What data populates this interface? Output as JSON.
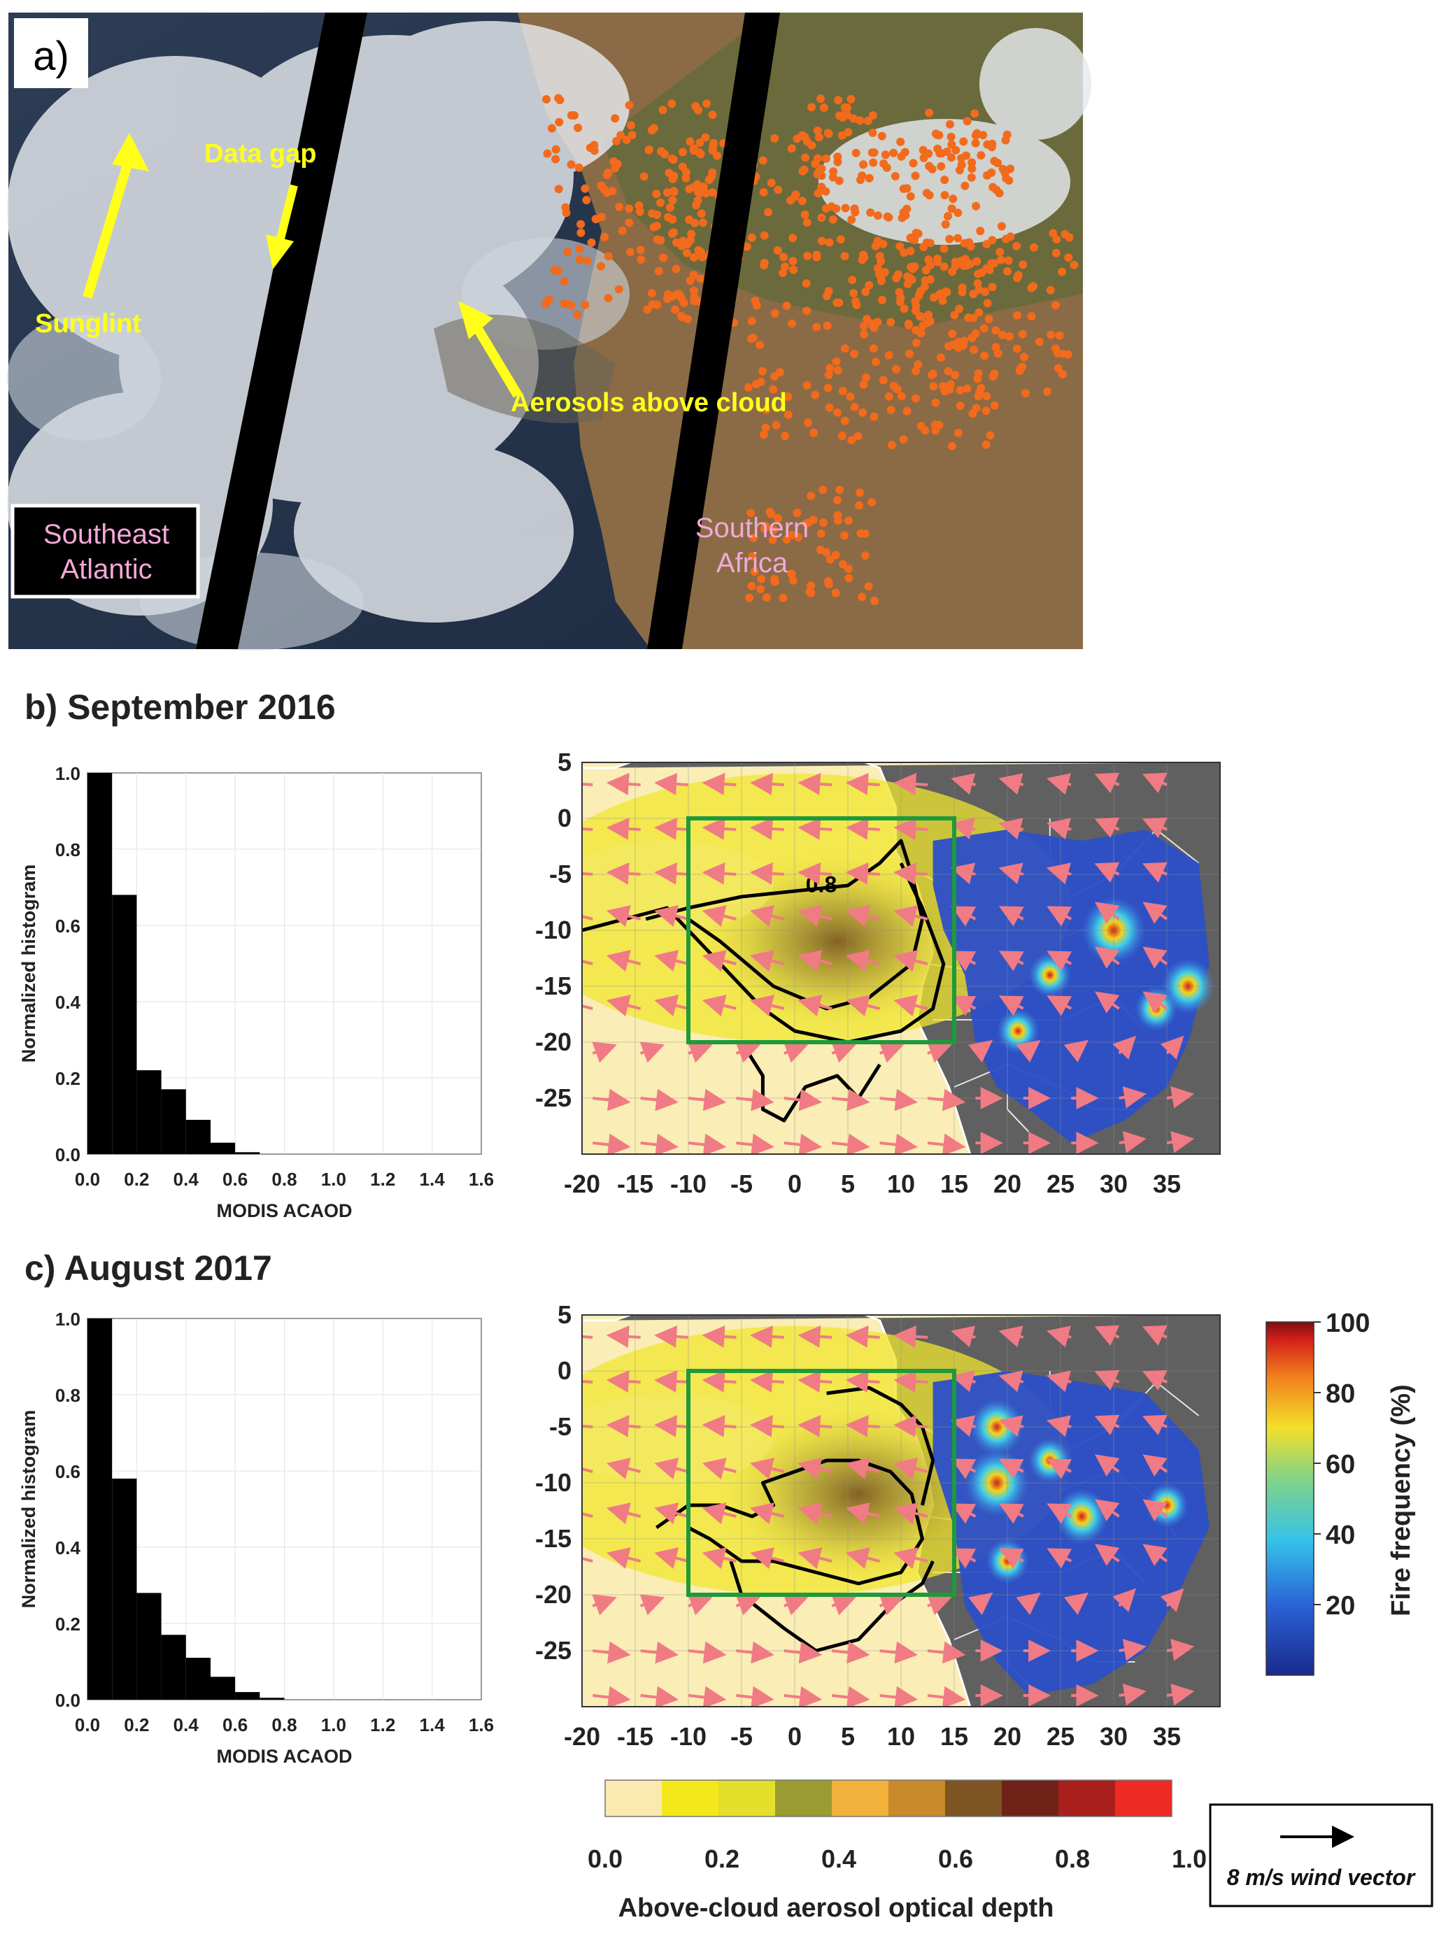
{
  "panel_a": {
    "label": "a)",
    "annotations": {
      "sunglint": "Sunglint",
      "data_gap": "Data gap",
      "aerosols": "Aerosols above cloud",
      "region_ocean": [
        "Southeast",
        "Atlantic"
      ],
      "region_land": [
        "Southern",
        "Africa"
      ]
    }
  },
  "panel_b": {
    "title": "b) September 2016"
  },
  "panel_c": {
    "title": "c) August 2017"
  },
  "colors": {
    "histogram": "#000000",
    "box": "#1e9a3c",
    "wind": "#f07b84",
    "land": "#606060",
    "fire_points": "#f26a1b",
    "annotation_yellow": "#ffff1a",
    "region_pink": "#f2a8d8"
  },
  "chart_data": [
    {
      "id": "hist-sep-2016",
      "type": "bar",
      "xlabel": "MODIS ACAOD",
      "ylabel": "Normalized histogram",
      "xlim": [
        0.0,
        1.6
      ],
      "ylim": [
        0.0,
        1.0
      ],
      "xticks": [
        "0.0",
        "0.2",
        "0.4",
        "0.6",
        "0.8",
        "1.0",
        "1.2",
        "1.4",
        "1.6"
      ],
      "yticks": [
        "0.0",
        "0.2",
        "0.4",
        "0.6",
        "0.8",
        "1.0"
      ],
      "bin_width": 0.1,
      "bins": [
        0.0,
        0.1,
        0.2,
        0.3,
        0.4,
        0.5,
        0.6
      ],
      "values": [
        1.0,
        0.68,
        0.22,
        0.17,
        0.09,
        0.03,
        0.005
      ]
    },
    {
      "id": "map-sep-2016",
      "type": "heatmap",
      "xlim": [
        -20,
        40
      ],
      "ylim": [
        -30,
        5
      ],
      "xticks": [
        "-20",
        "-15",
        "-10",
        "-5",
        "0",
        "5",
        "10",
        "15",
        "20",
        "25",
        "30",
        "35"
      ],
      "yticks": [
        "5",
        "0",
        "-5",
        "-10",
        "-15",
        "-20",
        "-25"
      ],
      "contour_label": "0.8",
      "study_box": {
        "lon": [
          -10,
          15
        ],
        "lat": [
          -20,
          0
        ]
      }
    },
    {
      "id": "hist-aug-2017",
      "type": "bar",
      "xlabel": "MODIS ACAOD",
      "ylabel": "Normalized histogram",
      "xlim": [
        0.0,
        1.6
      ],
      "ylim": [
        0.0,
        1.0
      ],
      "xticks": [
        "0.0",
        "0.2",
        "0.4",
        "0.6",
        "0.8",
        "1.0",
        "1.2",
        "1.4",
        "1.6"
      ],
      "yticks": [
        "0.0",
        "0.2",
        "0.4",
        "0.6",
        "0.8",
        "1.0"
      ],
      "bin_width": 0.1,
      "bins": [
        0.0,
        0.1,
        0.2,
        0.3,
        0.4,
        0.5,
        0.6,
        0.7
      ],
      "values": [
        1.0,
        0.58,
        0.28,
        0.17,
        0.11,
        0.06,
        0.02,
        0.005
      ]
    },
    {
      "id": "map-aug-2017",
      "type": "heatmap",
      "xlim": [
        -20,
        40
      ],
      "ylim": [
        -30,
        5
      ],
      "xticks": [
        "-20",
        "-15",
        "-10",
        "-5",
        "0",
        "5",
        "10",
        "15",
        "20",
        "25",
        "30",
        "35"
      ],
      "yticks": [
        "5",
        "0",
        "-5",
        "-10",
        "-15",
        "-20",
        "-25"
      ],
      "study_box": {
        "lon": [
          -10,
          15
        ],
        "lat": [
          -20,
          0
        ]
      }
    }
  ],
  "fire_colorbar": {
    "label": "Fire frequency (%)",
    "ticks": [
      "20",
      "40",
      "60",
      "80",
      "100"
    ],
    "range": [
      0,
      100
    ]
  },
  "aod_colorbar": {
    "label": "Above-cloud aerosol optical depth",
    "ticks": [
      "0.0",
      "0.2",
      "0.4",
      "0.6",
      "0.8",
      "1.0"
    ],
    "colors": [
      "#faeab0",
      "#f5e81a",
      "#e3df2b",
      "#9a9b30",
      "#f2b23b",
      "#c88a2a",
      "#7c5522",
      "#6f2318",
      "#a81f1c",
      "#ee2a24"
    ]
  },
  "wind_legend": {
    "label": "8 m/s wind vector"
  }
}
